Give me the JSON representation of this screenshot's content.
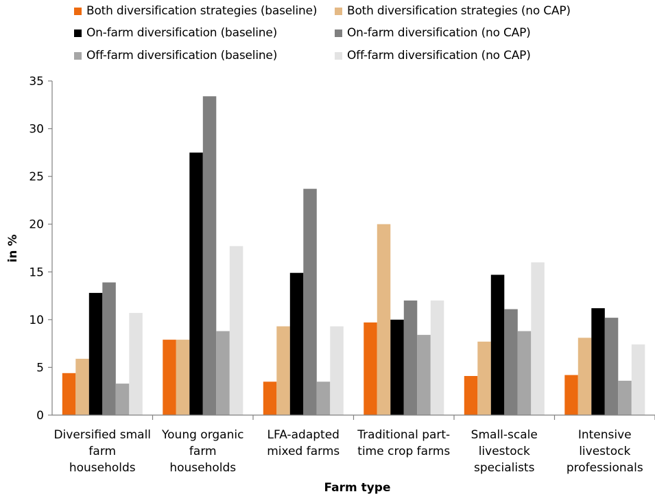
{
  "chart_data": {
    "type": "bar",
    "xlabel": "Farm type",
    "ylabel": "in %",
    "ylim": [
      0,
      35
    ],
    "yticks": [
      0,
      5,
      10,
      15,
      20,
      25,
      30,
      35
    ],
    "grid": false,
    "legend_position": "top",
    "categories": [
      [
        "Diversified small",
        "farm",
        "households"
      ],
      [
        "Young organic",
        "farm",
        "households"
      ],
      [
        "LFA-adapted",
        "mixed farms"
      ],
      [
        "Traditional part-",
        "time crop farms"
      ],
      [
        "Small-scale",
        "livestock",
        "specialists"
      ],
      [
        "Intensive",
        "livestock",
        "professionals"
      ]
    ],
    "series": [
      {
        "name": "Both diversification strategies (baseline)",
        "color": "#ED6A0F",
        "values": [
          4.4,
          7.9,
          3.5,
          9.7,
          4.1,
          4.2
        ]
      },
      {
        "name": "Both diversification strategies (no CAP)",
        "color": "#E4B985",
        "values": [
          5.9,
          7.9,
          9.3,
          20.0,
          7.7,
          8.1
        ]
      },
      {
        "name": "On-farm diversification (baseline)",
        "color": "#000000",
        "values": [
          12.8,
          27.5,
          14.9,
          10.0,
          14.7,
          11.2
        ]
      },
      {
        "name": "On-farm diversification (no CAP)",
        "color": "#7F7F7F",
        "values": [
          13.9,
          33.4,
          23.7,
          12.0,
          11.1,
          10.2
        ]
      },
      {
        "name": "Off-farm diversification (baseline)",
        "color": "#A6A6A6",
        "values": [
          3.3,
          8.8,
          3.5,
          8.4,
          8.8,
          3.6
        ]
      },
      {
        "name": "Off-farm diversification (no CAP)",
        "color": "#E3E3E3",
        "values": [
          10.7,
          17.7,
          9.3,
          12.0,
          16.0,
          7.4
        ]
      }
    ]
  }
}
